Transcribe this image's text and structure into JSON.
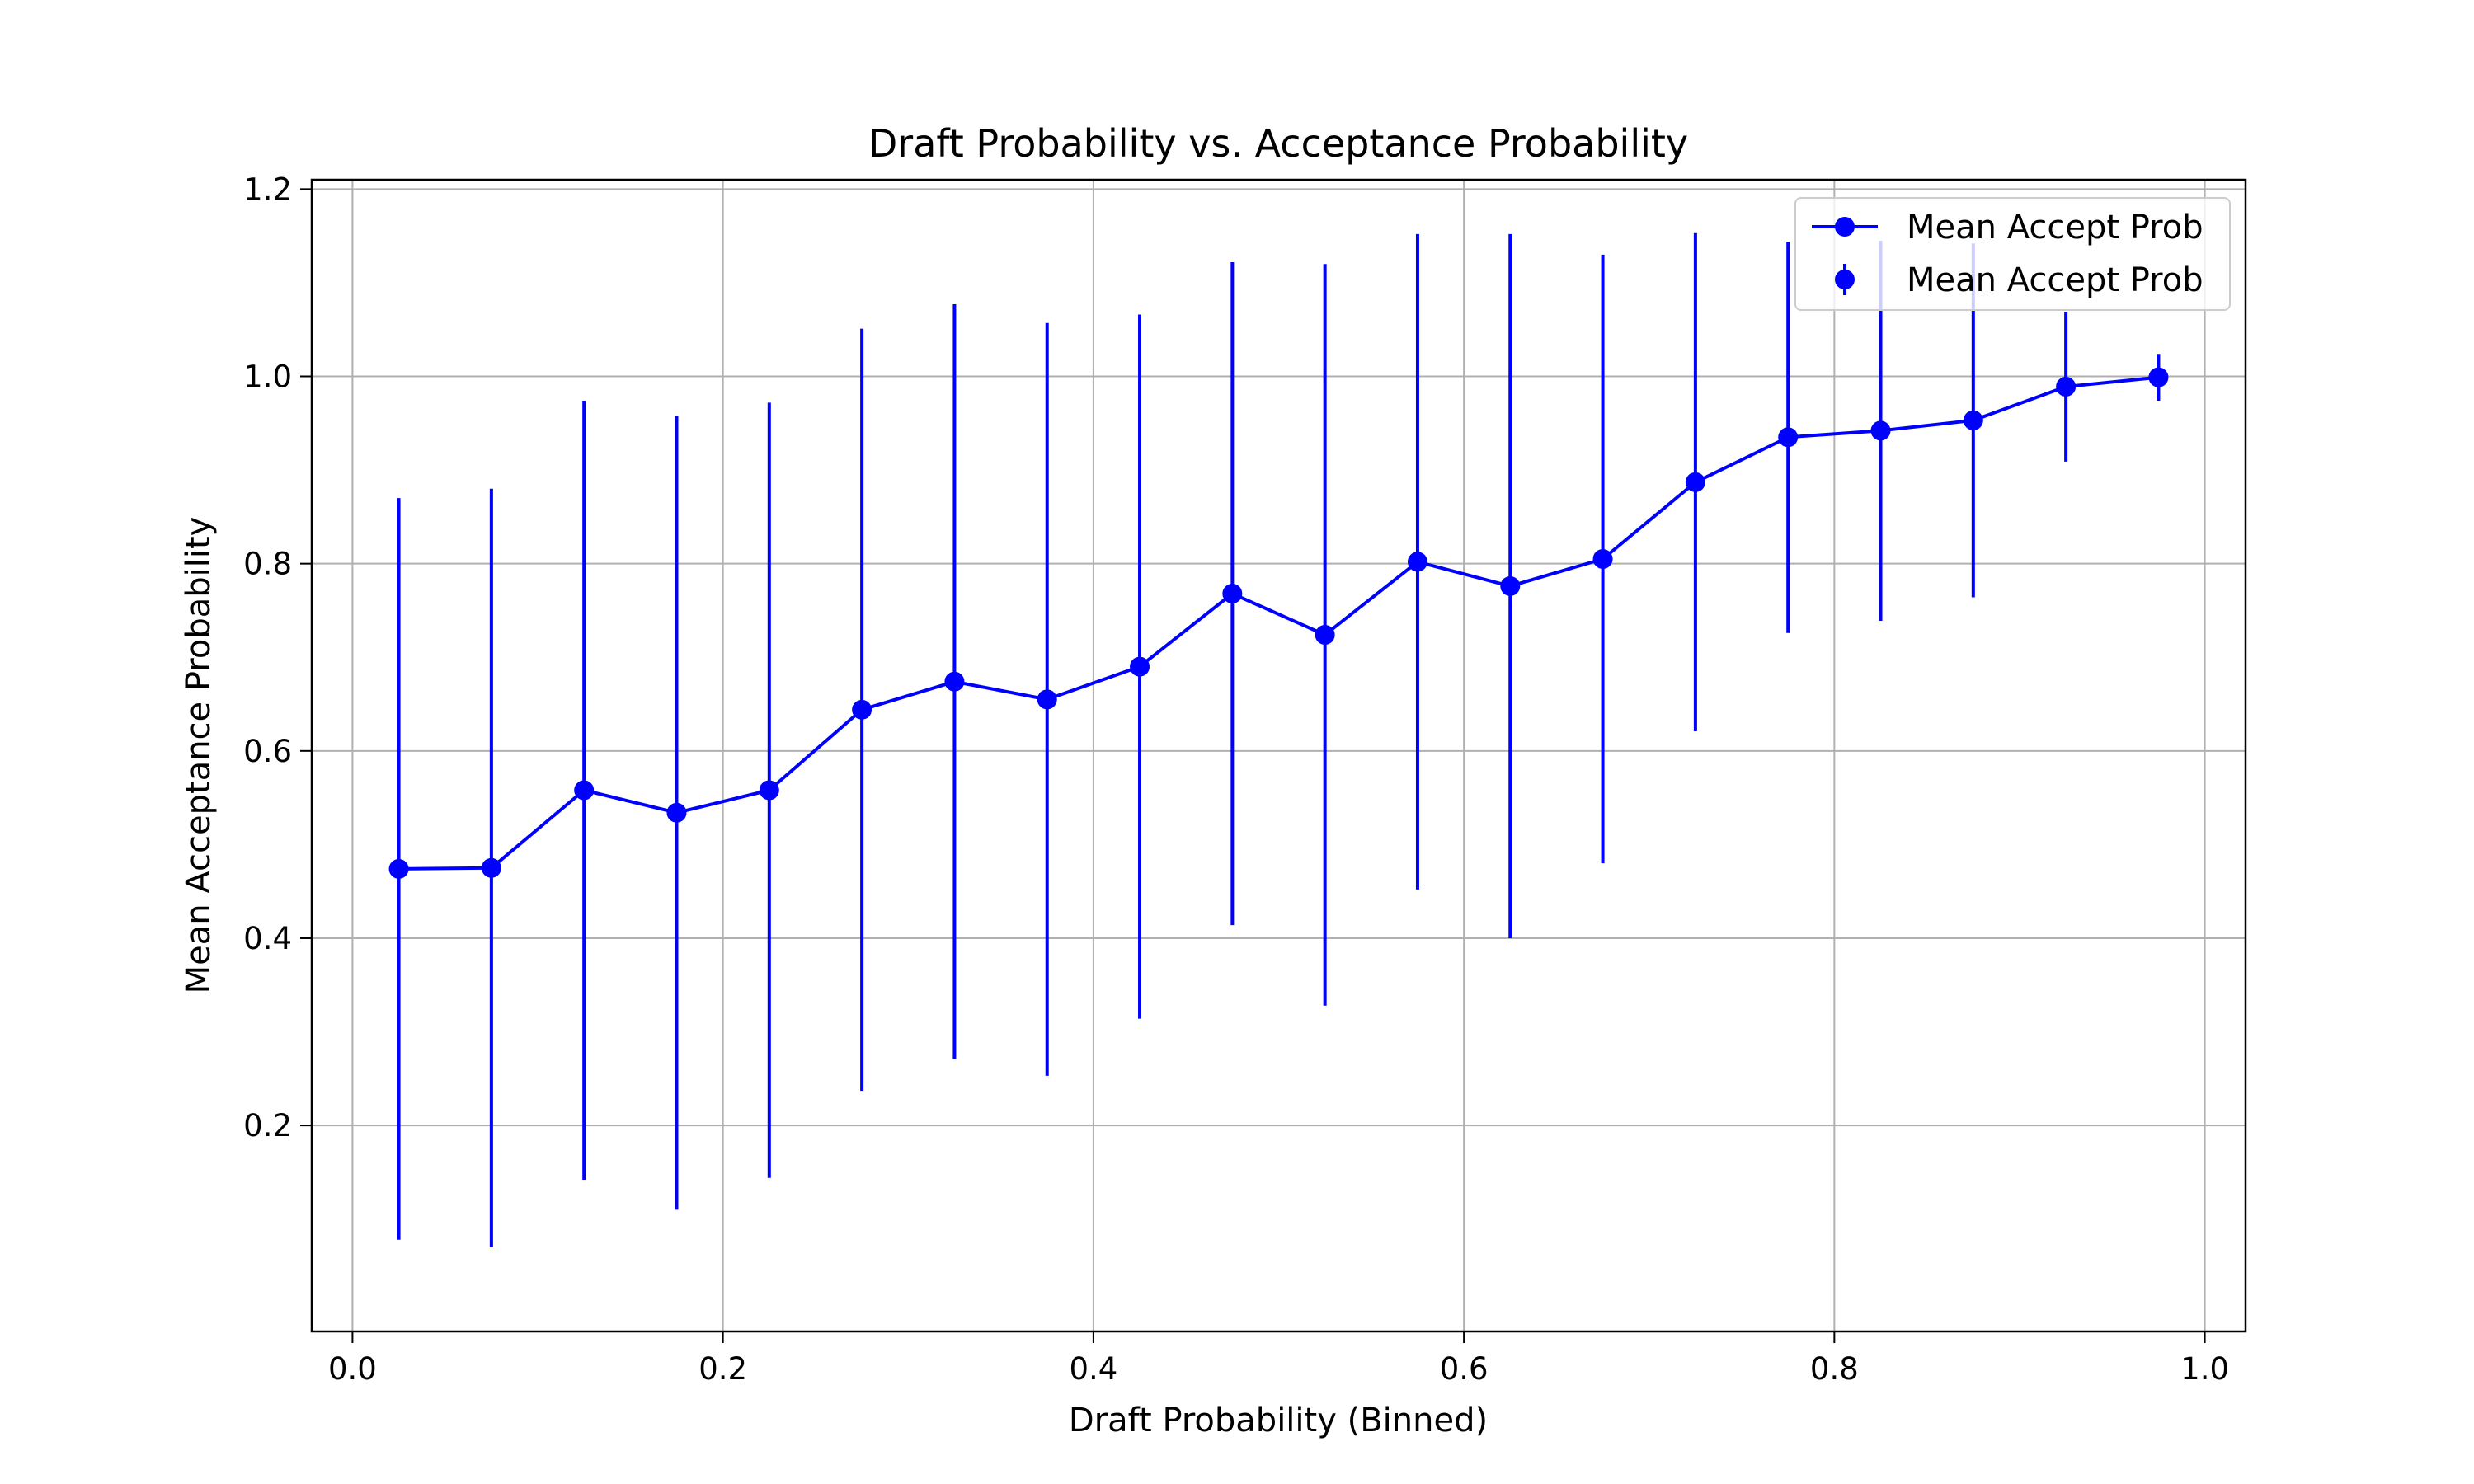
{
  "chart_data": {
    "type": "line",
    "title": "Draft Probability vs. Acceptance Probability",
    "xlabel": "Draft Probability (Binned)",
    "ylabel": "Mean Acceptance Probability",
    "xlim": [
      -0.022,
      1.022
    ],
    "ylim": [
      -0.02,
      1.21
    ],
    "xticks": [
      0.0,
      0.2,
      0.4,
      0.6,
      0.8,
      1.0
    ],
    "xtick_labels": [
      "0.0",
      "0.2",
      "0.4",
      "0.6",
      "0.8",
      "1.0"
    ],
    "yticks": [
      0.2,
      0.4,
      0.6,
      0.8,
      1.0,
      1.2
    ],
    "ytick_labels": [
      "0.2",
      "0.4",
      "0.6",
      "0.8",
      "1.0",
      "1.2"
    ],
    "grid": true,
    "legend_position": "top-right",
    "color": "#0000ff",
    "series": [
      {
        "name": "Mean Accept Prob",
        "x": [
          0.025,
          0.075,
          0.125,
          0.175,
          0.225,
          0.275,
          0.325,
          0.375,
          0.425,
          0.475,
          0.525,
          0.575,
          0.625,
          0.675,
          0.725,
          0.775,
          0.825,
          0.875,
          0.925,
          0.975
        ],
        "y": [
          0.474,
          0.475,
          0.558,
          0.534,
          0.558,
          0.644,
          0.674,
          0.655,
          0.69,
          0.768,
          0.724,
          0.802,
          0.776,
          0.805,
          0.887,
          0.935,
          0.942,
          0.953,
          0.989,
          0.999
        ],
        "err": [
          0.396,
          0.405,
          0.416,
          0.424,
          0.414,
          0.407,
          0.403,
          0.402,
          0.376,
          0.354,
          0.396,
          0.35,
          0.376,
          0.325,
          0.266,
          0.209,
          0.203,
          0.189,
          0.08,
          0.025
        ]
      }
    ],
    "legend": [
      "Mean Accept Prob",
      "Mean Accept Prob"
    ]
  }
}
